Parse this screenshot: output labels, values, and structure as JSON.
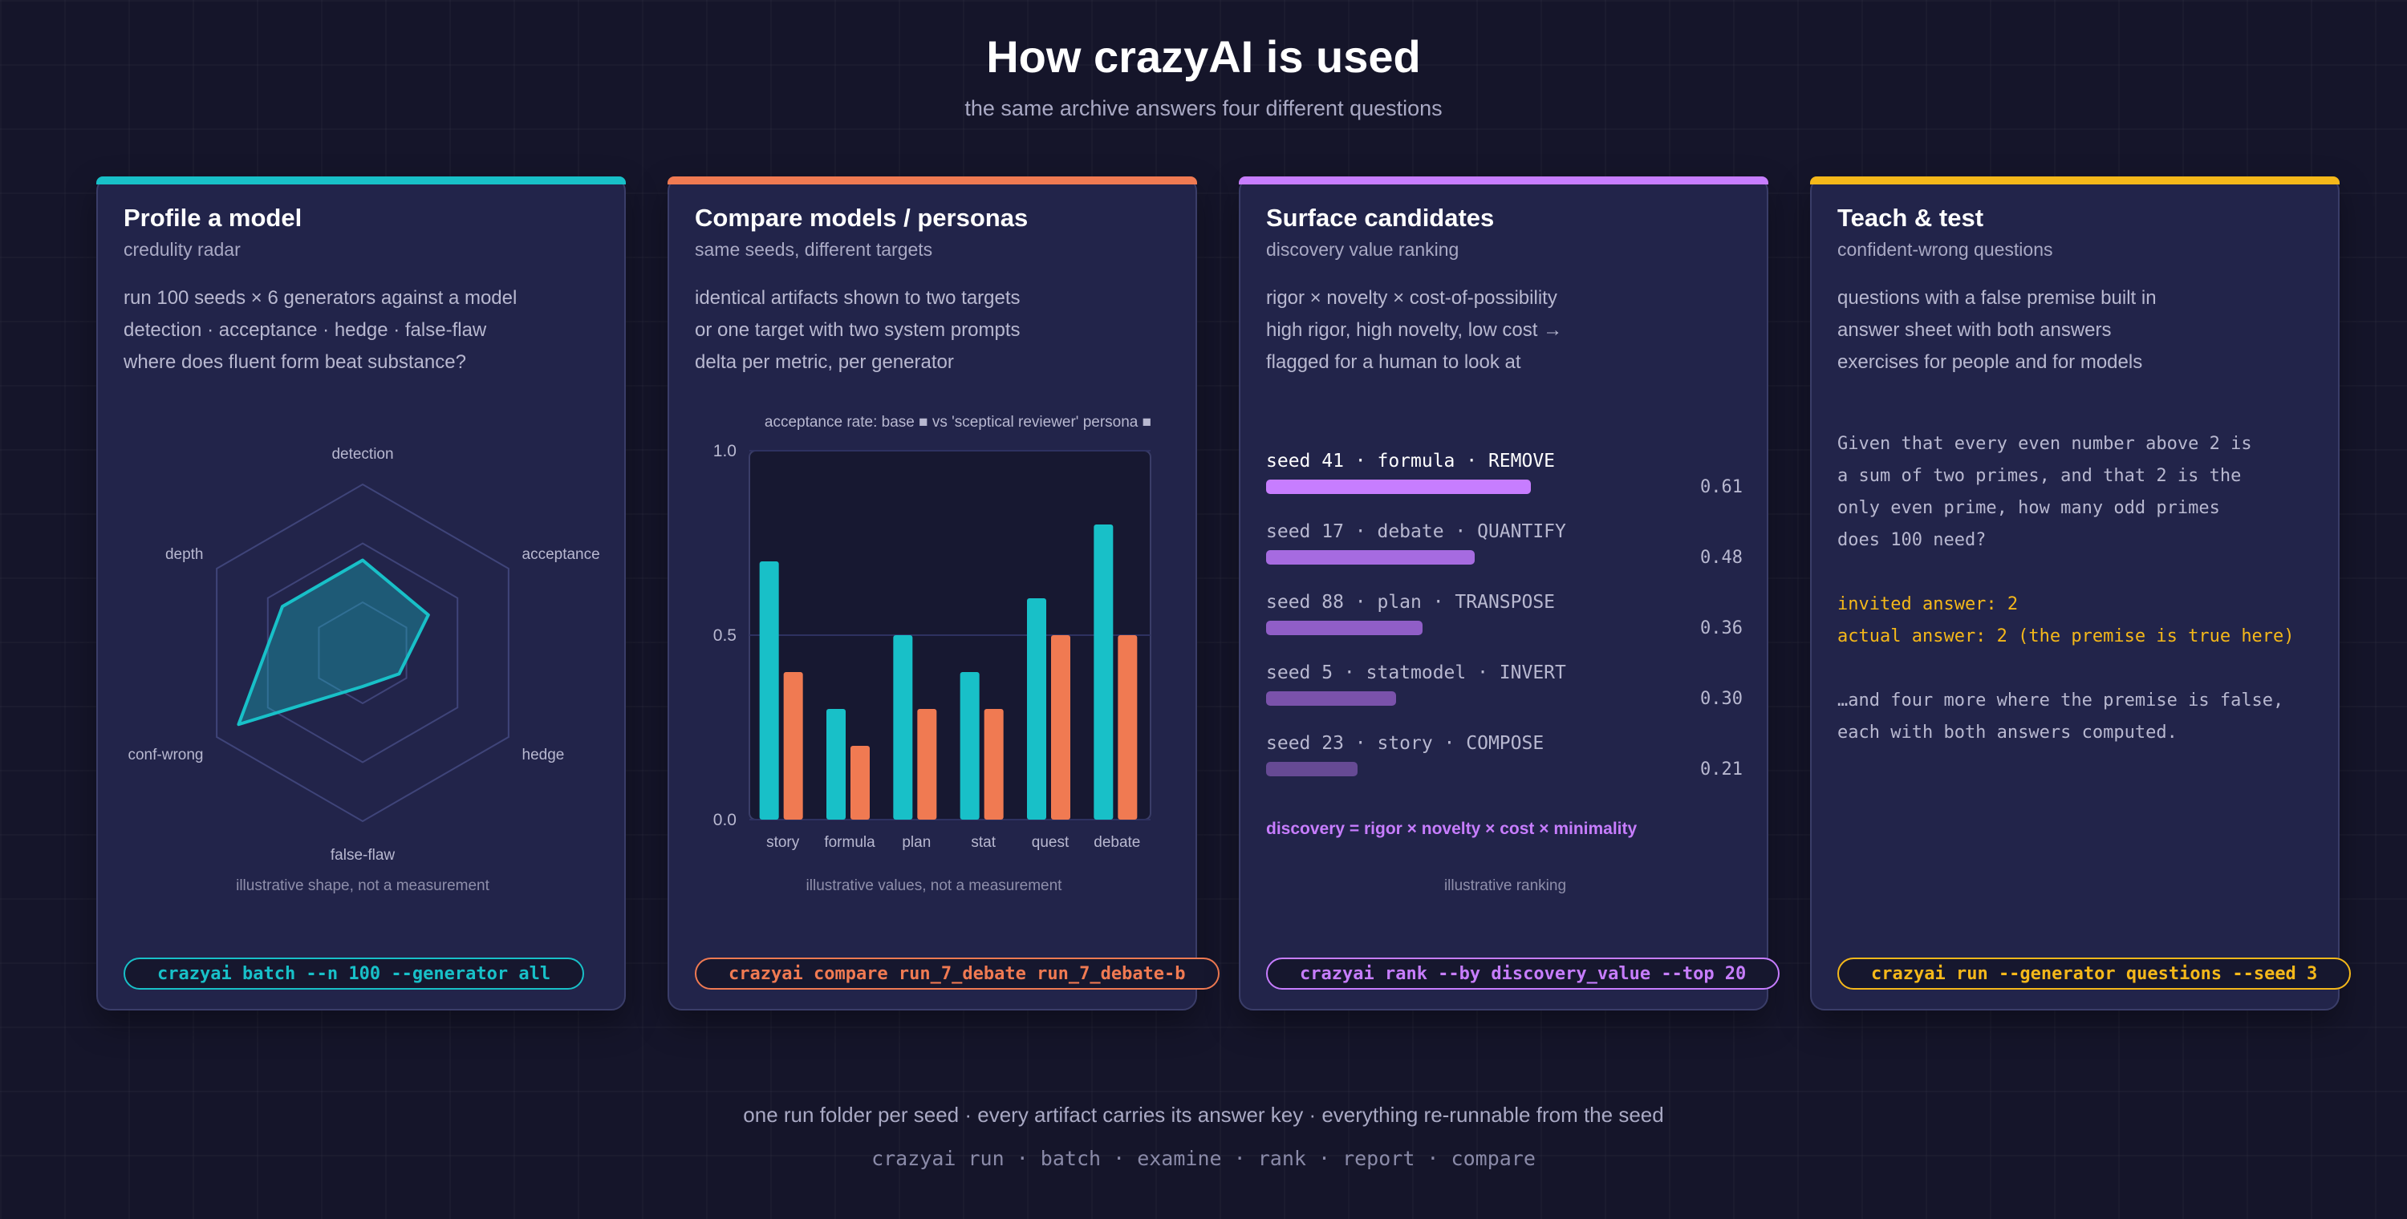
{
  "header": {
    "title": "How crazyAI is used",
    "subtitle": "the same archive answers four different questions"
  },
  "colors": {
    "teal": "#18c0c8",
    "coral": "#f07a52",
    "purple": "#c77dff",
    "amber": "#f5b81a"
  },
  "cards": [
    {
      "title": "Profile a model",
      "subtitle": "credulity radar",
      "lines": [
        "run 100 seeds × 6 generators against a model",
        "detection · acceptance · hedge · false-flaw",
        "where does fluent form beat substance?"
      ],
      "caption": "illustrative shape, not a measurement",
      "command": "crazyai batch --n 100 --generator all"
    },
    {
      "title": "Compare models / personas",
      "subtitle": "same seeds, different targets",
      "lines": [
        "identical artifacts shown to two targets",
        "or one target with two system prompts",
        "delta per metric, per generator"
      ],
      "caption": "illustrative values, not a measurement",
      "command": "crazyai compare run_7_debate run_7_debate-b"
    },
    {
      "title": "Surface candidates",
      "subtitle": "discovery value ranking",
      "lines": [
        "rigor × novelty × cost-of-possibility",
        "high rigor, high novelty, low cost →",
        "flagged for a human to look at"
      ],
      "caption": "illustrative ranking",
      "command": "crazyai rank --by discovery_value --top 20"
    },
    {
      "title": "Teach & test",
      "subtitle": "confident-wrong questions",
      "lines": [
        "questions with a false premise built in",
        "answer sheet with both answers",
        "exercises for people and for models"
      ],
      "command": "crazyai run --generator questions --seed 3"
    }
  ],
  "radar": {
    "type": "radar",
    "axes": [
      "detection",
      "acceptance",
      "hedge",
      "false-flaw",
      "conf-wrong",
      "depth"
    ],
    "values": [
      0.55,
      0.45,
      0.25,
      0.2,
      0.85,
      0.55
    ],
    "rmax": 1
  },
  "chart_data": {
    "type": "bar",
    "title": "acceptance rate: base ■ vs 'sceptical reviewer' persona ■",
    "categories": [
      "story",
      "formula",
      "plan",
      "stat",
      "quest",
      "debate"
    ],
    "series": [
      {
        "values": [
          0.7,
          0.3,
          0.5,
          0.4,
          0.6,
          0.8
        ]
      },
      {
        "values": [
          0.4,
          0.2,
          0.3,
          0.3,
          0.5,
          0.5
        ]
      }
    ],
    "ylim": [
      0,
      1
    ],
    "yticks": [
      "0.0",
      "0.5",
      "1.0"
    ],
    "grid": true
  },
  "ranking": {
    "items": [
      {
        "label": "seed 41 · formula · REMOVE",
        "score": 0.61,
        "score_label": "0.61",
        "color": "#c77dff"
      },
      {
        "label": "seed 17 · debate · QUANTIFY",
        "score": 0.48,
        "score_label": "0.48",
        "color": "#a66be0"
      },
      {
        "label": "seed 88 · plan · TRANSPOSE",
        "score": 0.36,
        "score_label": "0.36",
        "color": "#905ec7"
      },
      {
        "label": "seed 5 · statmodel · INVERT",
        "score": 0.3,
        "score_label": "0.30",
        "color": "#7a52ab"
      },
      {
        "label": "seed 23 · story · COMPOSE",
        "score": 0.21,
        "score_label": "0.21",
        "color": "#664a94"
      }
    ],
    "formula": "discovery = rigor × novelty × cost × minimality"
  },
  "question": {
    "lines": [
      "Given that every even number above 2 is",
      "a sum of two primes, and that 2 is the",
      "only even prime, how many odd primes",
      "does 100 need?"
    ],
    "invited": "invited answer: 2",
    "actual": "actual answer: 2 (the premise is true here)",
    "more": [
      "…and four more where the premise is false,",
      "each with both answers computed."
    ]
  },
  "footer": {
    "line1": "one run folder per seed · every artifact carries its answer key · everything re-runnable from the seed",
    "line2": "crazyai run · batch · examine · rank · report · compare"
  }
}
